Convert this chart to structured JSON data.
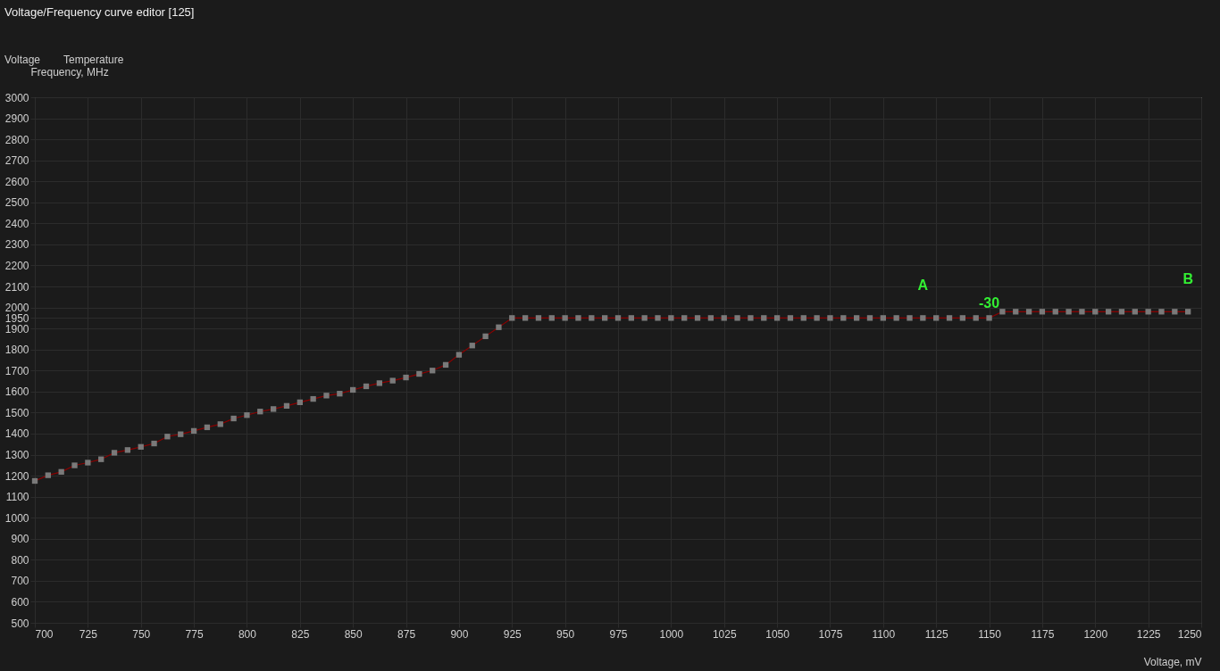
{
  "chart_data": {
    "type": "line",
    "title": "Voltage/Frequency curve editor [125]",
    "xlabel": "Voltage, mV",
    "ylabel": "Frequency, MHz",
    "xlim": [
      700,
      1250
    ],
    "ylim": [
      500,
      3000
    ],
    "xticks": [
      700,
      725,
      750,
      775,
      800,
      825,
      850,
      875,
      900,
      925,
      950,
      975,
      1000,
      1025,
      1050,
      1075,
      1100,
      1125,
      1150,
      1175,
      1200,
      1225,
      1250
    ],
    "yticks": [
      500,
      600,
      700,
      800,
      900,
      1000,
      1100,
      1200,
      1300,
      1400,
      1500,
      1600,
      1700,
      1800,
      1900,
      1950,
      2000,
      2100,
      2200,
      2300,
      2400,
      2500,
      2600,
      2700,
      2800,
      2900,
      3000
    ],
    "grid": true,
    "annotations": [
      "Voltage",
      "Temperature",
      {
        "text": "-30",
        "x": 1150,
        "y": 1950
      },
      {
        "text": "A",
        "x": 1118.75,
        "y": 1950
      },
      {
        "text": "B",
        "x": 1243.75,
        "y": 1980
      }
    ],
    "series": [
      {
        "color": "#8b0000",
        "marker": "none",
        "line_style": "solid",
        "x": [
          700,
          706.25,
          712.5,
          718.75,
          725,
          731.25,
          737.5,
          743.75,
          750,
          756.25,
          762.5,
          768.75,
          775,
          781.25,
          787.5,
          793.75,
          800,
          806.25,
          812.5,
          818.75,
          825,
          831.25,
          837.5,
          843.75,
          850,
          856.25,
          862.5,
          868.75,
          875,
          881.25,
          887.5,
          893.75,
          900,
          906.25,
          912.5,
          918.75,
          925,
          931.25,
          937.5,
          943.75,
          950,
          956.25,
          962.5,
          968.75,
          975,
          981.25,
          987.5,
          993.75,
          1000,
          1006.25,
          1012.5,
          1018.75,
          1025,
          1031.25,
          1037.5,
          1043.75,
          1050,
          1056.25,
          1062.5,
          1068.75,
          1075,
          1081.25,
          1087.5,
          1093.75,
          1100,
          1106.25,
          1112.5,
          1118.75,
          1125,
          1131.25,
          1137.5,
          1143.75,
          1150,
          1156.25,
          1162.5,
          1168.75,
          1175,
          1181.25,
          1187.5,
          1193.75,
          1200,
          1206.25,
          1212.5,
          1218.75,
          1225,
          1231.25,
          1237.5,
          1243.75
        ],
        "values": [
          1175,
          1202,
          1218,
          1249,
          1262,
          1278,
          1309,
          1322,
          1337,
          1353,
          1386,
          1397,
          1413,
          1430,
          1445,
          1472,
          1488,
          1505,
          1517,
          1532,
          1549,
          1565,
          1581,
          1590,
          1608,
          1625,
          1640,
          1652,
          1667,
          1684,
          1700,
          1727,
          1775,
          1819,
          1863,
          1906,
          1950,
          1950,
          1950,
          1950,
          1950,
          1950,
          1950,
          1950,
          1950,
          1950,
          1950,
          1950,
          1950,
          1950,
          1950,
          1950,
          1950,
          1950,
          1950,
          1950,
          1950,
          1950,
          1950,
          1950,
          1950,
          1950,
          1950,
          1950,
          1950,
          1950,
          1950,
          1950,
          1950,
          1950,
          1950,
          1950,
          1950,
          1980,
          1980,
          1980,
          1980,
          1980,
          1980,
          1980,
          1980,
          1980,
          1980,
          1980,
          1980,
          1980,
          1980,
          1980
        ]
      },
      {
        "type": "scatter",
        "color": "#7a7a7a",
        "marker": "square",
        "x": [
          700,
          706.25,
          712.5,
          718.75,
          725,
          731.25,
          737.5,
          743.75,
          750,
          756.25,
          762.5,
          768.75,
          775,
          781.25,
          787.5,
          793.75,
          800,
          806.25,
          812.5,
          818.75,
          825,
          831.25,
          837.5,
          843.75,
          850,
          856.25,
          862.5,
          868.75,
          875,
          881.25,
          887.5,
          893.75,
          900,
          906.25,
          912.5,
          918.75,
          925,
          931.25,
          937.5,
          943.75,
          950,
          956.25,
          962.5,
          968.75,
          975,
          981.25,
          987.5,
          993.75,
          1000,
          1006.25,
          1012.5,
          1018.75,
          1025,
          1031.25,
          1037.5,
          1043.75,
          1050,
          1056.25,
          1062.5,
          1068.75,
          1075,
          1081.25,
          1087.5,
          1093.75,
          1100,
          1106.25,
          1112.5,
          1118.75,
          1125,
          1131.25,
          1137.5,
          1143.75,
          1150,
          1156.25,
          1162.5,
          1168.75,
          1175,
          1181.25,
          1187.5,
          1193.75,
          1200,
          1206.25,
          1212.5,
          1218.75,
          1225,
          1231.25,
          1237.5,
          1243.75
        ],
        "values": [
          1175,
          1202,
          1218,
          1249,
          1262,
          1278,
          1309,
          1322,
          1337,
          1353,
          1386,
          1397,
          1413,
          1430,
          1445,
          1472,
          1488,
          1505,
          1517,
          1532,
          1549,
          1565,
          1581,
          1590,
          1608,
          1625,
          1640,
          1652,
          1667,
          1684,
          1700,
          1727,
          1775,
          1819,
          1863,
          1906,
          1950,
          1950,
          1950,
          1950,
          1950,
          1950,
          1950,
          1950,
          1950,
          1950,
          1950,
          1950,
          1950,
          1950,
          1950,
          1950,
          1950,
          1950,
          1950,
          1950,
          1950,
          1950,
          1950,
          1950,
          1950,
          1950,
          1950,
          1950,
          1950,
          1950,
          1950,
          1950,
          1950,
          1950,
          1950,
          1950,
          1950,
          1980,
          1980,
          1980,
          1980,
          1980,
          1980,
          1980,
          1980,
          1980,
          1980,
          1980,
          1980,
          1980,
          1980,
          1980
        ]
      }
    ]
  }
}
